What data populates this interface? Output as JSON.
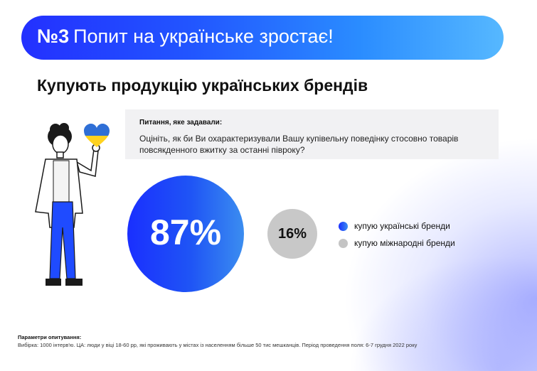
{
  "banner": {
    "number": "№3",
    "title": "Попит на українське зростає!"
  },
  "page_title": "Купують продукцію українських брендів",
  "question": {
    "label": "Питання, яке задавали:",
    "text": "Оцініть, як би Ви охарактеризували Вашу купівельну поведінку стосовно товарів повсякденного вжитку за останні півроку?"
  },
  "stats": {
    "ukrainian": {
      "value": "87%",
      "legend": "купую українські бренди",
      "color": "#1f4bff"
    },
    "international": {
      "value": "16%",
      "legend": "купую міжнародні бренди",
      "color": "#c4c4c4"
    }
  },
  "footer": {
    "label": "Параметри опитування:",
    "text": "Вибірка: 1000 інтерв'ю. ЦА: люди у віці 18-60 рр, які проживають у містах із населенням більше 50 тис мешканців. Період проведення поля: 6-7 грудня 2022 року"
  },
  "icons": {
    "heart": "heart-ukraine-flag-icon",
    "person": "person-illustration"
  },
  "colors": {
    "accent_blue": "#1f4bff",
    "flag_blue": "#2f6fd6",
    "flag_yellow": "#ffd21e"
  }
}
